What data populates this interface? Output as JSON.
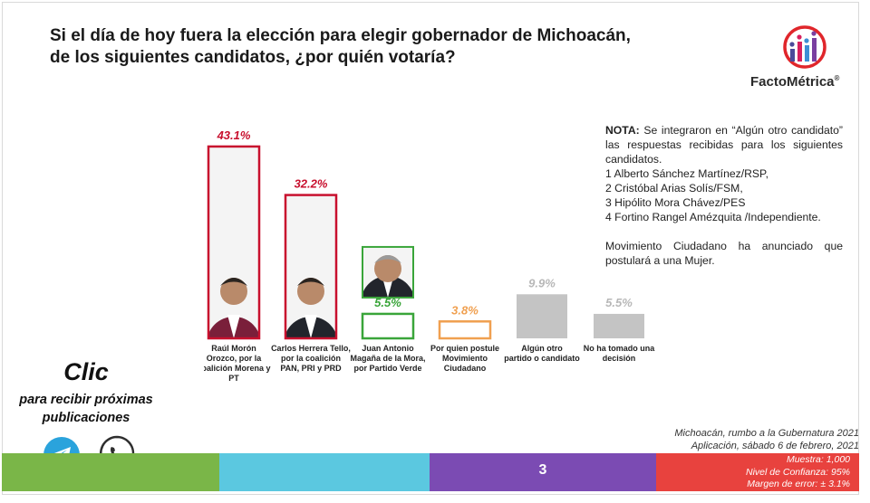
{
  "title": {
    "line1": "Si el día de hoy fuera la elección para elegir gobernador de Michoacán,",
    "line2": "de los siguientes candidatos, ¿por quién votaría?"
  },
  "logo": {
    "text": "FactoMétrica",
    "registered": "®"
  },
  "note": {
    "label": "NOTA:",
    "intro": " Se integraron en “Algún otro candidato” las respuestas recibidas para los siguientes candidatos.",
    "items": [
      "1 Alberto Sánchez Martínez/RSP,",
      "2 Cristóbal Arias Solís/FSM,",
      "3 Hipólito Mora Chávez/PES",
      "4 Fortino Rangel Amézquita /Independiente."
    ],
    "extra": "Movimiento Ciudadano ha anunciado que postulará a una Mujer."
  },
  "chart_data": {
    "type": "bar",
    "categories": [
      "Raúl Morón Orozco, por la coalición Morena y PT",
      "Carlos Herrera Tello, por la coalición PAN, PRI y PRD",
      "Juan Antonio Magaña de la Mora, por Partido Verde",
      "Por quien postule Movimiento Ciudadano",
      "Algún otro partido o candidato",
      "No ha tomado una decisión"
    ],
    "category_lines": [
      [
        "Raúl Morón",
        "Orozco, por la",
        "coalición Morena y",
        "PT"
      ],
      [
        "Carlos Herrera Tello,",
        "por la coalición",
        "PAN, PRI y PRD"
      ],
      [
        "Juan Antonio",
        "Magaña de la Mora,",
        "por Partido Verde"
      ],
      [
        "Por quien postule",
        "Movimiento",
        "Ciudadano"
      ],
      [
        "Algún otro",
        "partido o candidato"
      ],
      [
        "No ha tomado una",
        "decisión"
      ]
    ],
    "values": [
      43.1,
      32.2,
      5.5,
      3.8,
      9.9,
      5.5
    ],
    "value_labels": [
      "43.1%",
      "32.2%",
      "5.5%",
      "3.8%",
      "9.9%",
      "5.5%"
    ],
    "colors": [
      "#c8102e",
      "#c8102e",
      "#3aa53a",
      "#f0a050",
      "#c4c4c4",
      "#c4c4c4"
    ],
    "label_colors": [
      "#c8102e",
      "#c8102e",
      "#3aa53a",
      "#f0a050",
      "#b8b8b8",
      "#b8b8b8"
    ],
    "filled": [
      false,
      false,
      false,
      false,
      true,
      true
    ],
    "has_photo": [
      true,
      true,
      true,
      false,
      false,
      false
    ],
    "ylim": [
      0,
      50
    ],
    "grid": false,
    "legend": "none"
  },
  "cta": {
    "big": "Clic",
    "small_line1": "para recibir próximas",
    "small_line2": "publicaciones",
    "icons": [
      "telegram-icon",
      "whatsapp-icon"
    ]
  },
  "source": {
    "line1": "Michoacán, rumbo a la Gubernatura 2021",
    "line2": "Aplicación, sábado 6 de febrero, 2021"
  },
  "footer": {
    "page_number": "3",
    "muestra": "Muestra: 1,000",
    "confianza": "Nivel de Confianza: 95%",
    "margen": "Margen de error: ± 3.1%",
    "colors": [
      "#7ab648",
      "#5bc8e0",
      "#7b4bb3",
      "#e8423e"
    ]
  }
}
